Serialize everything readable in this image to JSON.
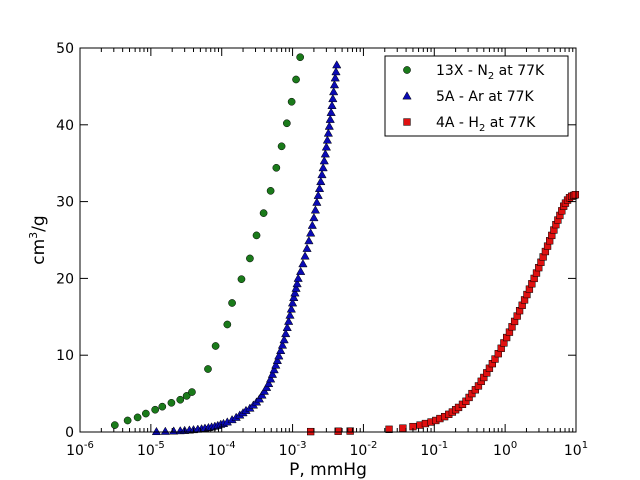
{
  "chart_data": {
    "type": "scatter",
    "xlabel": "P, mmHg",
    "ylabel_main": "cm",
    "ylabel_sup": "3",
    "ylabel_tail": "/g",
    "xscale": "log",
    "xlim": [
      1e-06,
      10
    ],
    "ylim": [
      0,
      50
    ],
    "x_ticks": [
      {
        "base": "10",
        "exp": "-6"
      },
      {
        "base": "10",
        "exp": "-5"
      },
      {
        "base": "10",
        "exp": "-4"
      },
      {
        "base": "10",
        "exp": "-3"
      },
      {
        "base": "10",
        "exp": "-2"
      },
      {
        "base": "10",
        "exp": "-1"
      },
      {
        "base": "10",
        "exp": "0"
      },
      {
        "base": "10",
        "exp": "1"
      }
    ],
    "y_ticks": [
      "0",
      "10",
      "20",
      "30",
      "40",
      "50"
    ],
    "grid": false,
    "legend_position": "top-right",
    "series": [
      {
        "name_parts": [
          "13X - N",
          "2",
          " at 77K"
        ],
        "marker": "circle",
        "color": "#1a7a1a",
        "points": [
          [
            3.1e-06,
            0.9
          ],
          [
            4.7e-06,
            1.5
          ],
          [
            6.5e-06,
            1.9
          ],
          [
            8.5e-06,
            2.4
          ],
          [
            1.15e-05,
            2.9
          ],
          [
            1.45e-05,
            3.3
          ],
          [
            1.95e-05,
            3.8
          ],
          [
            2.6e-05,
            4.2
          ],
          [
            3.2e-05,
            4.7
          ],
          [
            3.8e-05,
            5.2
          ],
          [
            6.4e-05,
            8.2
          ],
          [
            8.2e-05,
            11.2
          ],
          [
            0.00012,
            14.0
          ],
          [
            0.00014,
            16.8
          ],
          [
            0.00019,
            19.9
          ],
          [
            0.00025,
            22.6
          ],
          [
            0.00031,
            25.6
          ],
          [
            0.00039,
            28.5
          ],
          [
            0.00049,
            31.4
          ],
          [
            0.00059,
            34.4
          ],
          [
            0.0007,
            37.2
          ],
          [
            0.00083,
            40.2
          ],
          [
            0.00097,
            43.0
          ],
          [
            0.00112,
            45.9
          ],
          [
            0.00128,
            48.8
          ]
        ]
      },
      {
        "name_parts": [
          "5A - Ar at 77K"
        ],
        "marker": "triangle",
        "color": "#0a0ab4",
        "points": [
          [
            1.2e-05,
            0.05
          ],
          [
            1.6e-05,
            0.08
          ],
          [
            2.1e-05,
            0.12
          ],
          [
            2.6e-05,
            0.16
          ],
          [
            3e-05,
            0.2
          ],
          [
            3.5e-05,
            0.25
          ],
          [
            4e-05,
            0.3
          ],
          [
            4.6e-05,
            0.36
          ],
          [
            5.2e-05,
            0.42
          ],
          [
            5.8e-05,
            0.5
          ],
          [
            6.5e-05,
            0.57
          ],
          [
            7.2e-05,
            0.65
          ],
          [
            8e-05,
            0.75
          ],
          [
            8.8e-05,
            0.85
          ],
          [
            9.7e-05,
            1.0
          ],
          [
            0.000106,
            1.1
          ],
          [
            0.00012,
            1.3
          ],
          [
            0.00014,
            1.6
          ],
          [
            0.00016,
            1.9
          ],
          [
            0.00018,
            2.2
          ],
          [
            0.0002,
            2.5
          ],
          [
            0.00022,
            2.8
          ],
          [
            0.00025,
            3.1
          ],
          [
            0.00028,
            3.5
          ],
          [
            0.00031,
            3.9
          ],
          [
            0.00034,
            4.3
          ],
          [
            0.00037,
            4.8
          ],
          [
            0.0004,
            5.3
          ],
          [
            0.00043,
            5.8
          ],
          [
            0.00046,
            6.3
          ],
          [
            0.00049,
            6.9
          ],
          [
            0.00052,
            7.5
          ],
          [
            0.00055,
            8.1
          ],
          [
            0.00058,
            8.7
          ],
          [
            0.00061,
            9.3
          ],
          [
            0.00064,
            9.9
          ],
          [
            0.00068,
            10.6
          ],
          [
            0.00072,
            11.3
          ],
          [
            0.00076,
            12.0
          ],
          [
            0.0008,
            12.8
          ],
          [
            0.00084,
            13.6
          ],
          [
            0.00088,
            14.4
          ],
          [
            0.00092,
            15.2
          ],
          [
            0.00096,
            16.0
          ],
          [
            0.001,
            16.8
          ],
          [
            0.00104,
            17.5
          ],
          [
            0.00108,
            18.1
          ],
          [
            0.00112,
            18.7
          ],
          [
            0.00116,
            19.3
          ],
          [
            0.0012,
            20.0
          ],
          [
            0.0013,
            20.9
          ],
          [
            0.0014,
            21.9
          ],
          [
            0.0015,
            22.9
          ],
          [
            0.0016,
            23.9
          ],
          [
            0.0017,
            24.9
          ],
          [
            0.0018,
            25.9
          ],
          [
            0.0019,
            26.9
          ],
          [
            0.002,
            27.9
          ],
          [
            0.0021,
            28.9
          ],
          [
            0.0022,
            29.9
          ],
          [
            0.0023,
            30.8
          ],
          [
            0.0024,
            31.7
          ],
          [
            0.0025,
            32.6
          ],
          [
            0.0026,
            33.5
          ],
          [
            0.0027,
            34.4
          ],
          [
            0.0028,
            35.3
          ],
          [
            0.0029,
            36.2
          ],
          [
            0.003,
            37.1
          ],
          [
            0.0031,
            38.0
          ],
          [
            0.0032,
            38.9
          ],
          [
            0.0033,
            39.8
          ],
          [
            0.0034,
            40.7
          ],
          [
            0.0035,
            41.6
          ],
          [
            0.0036,
            42.5
          ],
          [
            0.0037,
            43.4
          ],
          [
            0.0038,
            44.3
          ],
          [
            0.0039,
            45.2
          ],
          [
            0.004,
            46.1
          ],
          [
            0.0041,
            46.9
          ],
          [
            0.0042,
            47.8
          ]
        ]
      },
      {
        "name_parts": [
          "4A - H",
          "2",
          " at 77K"
        ],
        "marker": "square",
        "color": "#e01010",
        "points": [
          [
            0.0018,
            0.05
          ],
          [
            0.0044,
            0.1
          ],
          [
            0.0065,
            0.12
          ],
          [
            0.023,
            0.35
          ],
          [
            0.036,
            0.5
          ],
          [
            0.05,
            0.7
          ],
          [
            0.063,
            0.9
          ],
          [
            0.075,
            1.1
          ],
          [
            0.09,
            1.3
          ],
          [
            0.105,
            1.5
          ],
          [
            0.12,
            1.75
          ],
          [
            0.14,
            2.0
          ],
          [
            0.16,
            2.3
          ],
          [
            0.18,
            2.6
          ],
          [
            0.2,
            2.9
          ],
          [
            0.22,
            3.2
          ],
          [
            0.25,
            3.6
          ],
          [
            0.28,
            4.0
          ],
          [
            0.31,
            4.5
          ],
          [
            0.34,
            5.0
          ],
          [
            0.38,
            5.5
          ],
          [
            0.42,
            6.0
          ],
          [
            0.46,
            6.6
          ],
          [
            0.5,
            7.1
          ],
          [
            0.55,
            7.7
          ],
          [
            0.6,
            8.3
          ],
          [
            0.66,
            8.9
          ],
          [
            0.72,
            9.5
          ],
          [
            0.8,
            10.2
          ],
          [
            0.88,
            10.9
          ],
          [
            0.96,
            11.6
          ],
          [
            1.05,
            12.3
          ],
          [
            1.15,
            13.0
          ],
          [
            1.25,
            13.7
          ],
          [
            1.36,
            14.4
          ],
          [
            1.48,
            15.1
          ],
          [
            1.6,
            15.8
          ],
          [
            1.74,
            16.5
          ],
          [
            1.88,
            17.2
          ],
          [
            2.03,
            17.9
          ],
          [
            2.2,
            18.6
          ],
          [
            2.38,
            19.3
          ],
          [
            2.57,
            20.0
          ],
          [
            2.77,
            20.7
          ],
          [
            2.98,
            21.4
          ],
          [
            3.2,
            22.1
          ],
          [
            3.44,
            22.8
          ],
          [
            3.7,
            23.5
          ],
          [
            3.97,
            24.2
          ],
          [
            4.25,
            24.9
          ],
          [
            4.55,
            25.6
          ],
          [
            4.87,
            26.3
          ],
          [
            5.2,
            27.0
          ],
          [
            5.55,
            27.6
          ],
          [
            5.92,
            28.2
          ],
          [
            6.3,
            28.8
          ],
          [
            6.7,
            29.4
          ],
          [
            7.1,
            29.8
          ],
          [
            7.6,
            30.2
          ],
          [
            8.1,
            30.5
          ],
          [
            8.7,
            30.7
          ],
          [
            9.3,
            30.8
          ],
          [
            9.8,
            30.9
          ]
        ]
      }
    ]
  }
}
